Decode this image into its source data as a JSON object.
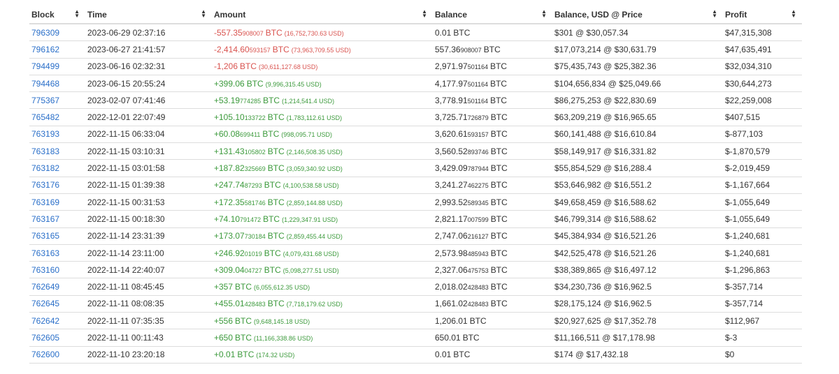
{
  "headers": [
    "Block",
    "Time",
    "Amount",
    "Balance",
    "Balance, USD @ Price",
    "Profit"
  ],
  "rows": [
    {
      "block": "796309",
      "time": "2023-06-29 02:37:16",
      "amt_main": "-557.35",
      "amt_sat": "908007",
      "amt_unit": "BTC",
      "amt_usd": "(16,752,730.63 USD)",
      "amt_sign": "neg",
      "bal_main": "0.01",
      "bal_sat": "",
      "bal_unit": "BTC",
      "usd_price": "$301 @ $30,057.34",
      "profit": "$47,315,308"
    },
    {
      "block": "796162",
      "time": "2023-06-27 21:41:57",
      "amt_main": "-2,414.60",
      "amt_sat": "593157",
      "amt_unit": "BTC",
      "amt_usd": "(73,963,709.55 USD)",
      "amt_sign": "neg",
      "bal_main": "557.36",
      "bal_sat": "908007",
      "bal_unit": "BTC",
      "usd_price": "$17,073,214 @ $30,631.79",
      "profit": "$47,635,491"
    },
    {
      "block": "794499",
      "time": "2023-06-16 02:32:31",
      "amt_main": "-1,206",
      "amt_sat": "",
      "amt_unit": "BTC",
      "amt_usd": "(30,611,127.68 USD)",
      "amt_sign": "neg",
      "bal_main": "2,971.97",
      "bal_sat": "501164",
      "bal_unit": "BTC",
      "usd_price": "$75,435,743 @ $25,382.36",
      "profit": "$32,034,310"
    },
    {
      "block": "794468",
      "time": "2023-06-15 20:55:24",
      "amt_main": "+399.06",
      "amt_sat": "",
      "amt_unit": "BTC",
      "amt_usd": "(9,996,315.45 USD)",
      "amt_sign": "pos",
      "bal_main": "4,177.97",
      "bal_sat": "501164",
      "bal_unit": "BTC",
      "usd_price": "$104,656,834 @ $25,049.66",
      "profit": "$30,644,273"
    },
    {
      "block": "775367",
      "time": "2023-02-07 07:41:46",
      "amt_main": "+53.19",
      "amt_sat": "774285",
      "amt_unit": "BTC",
      "amt_usd": "(1,214,541.4 USD)",
      "amt_sign": "pos",
      "bal_main": "3,778.91",
      "bal_sat": "501164",
      "bal_unit": "BTC",
      "usd_price": "$86,275,253 @ $22,830.69",
      "profit": "$22,259,008"
    },
    {
      "block": "765482",
      "time": "2022-12-01 22:07:49",
      "amt_main": "+105.10",
      "amt_sat": "133722",
      "amt_unit": "BTC",
      "amt_usd": "(1,783,112.61 USD)",
      "amt_sign": "pos",
      "bal_main": "3,725.71",
      "bal_sat": "726879",
      "bal_unit": "BTC",
      "usd_price": "$63,209,219 @ $16,965.65",
      "profit": "$407,515"
    },
    {
      "block": "763193",
      "time": "2022-11-15 06:33:04",
      "amt_main": "+60.08",
      "amt_sat": "699411",
      "amt_unit": "BTC",
      "amt_usd": "(998,095.71 USD)",
      "amt_sign": "pos",
      "bal_main": "3,620.61",
      "bal_sat": "593157",
      "bal_unit": "BTC",
      "usd_price": "$60,141,488 @ $16,610.84",
      "profit": "$-877,103"
    },
    {
      "block": "763183",
      "time": "2022-11-15 03:10:31",
      "amt_main": "+131.43",
      "amt_sat": "105802",
      "amt_unit": "BTC",
      "amt_usd": "(2,146,508.35 USD)",
      "amt_sign": "pos",
      "bal_main": "3,560.52",
      "bal_sat": "893746",
      "bal_unit": "BTC",
      "usd_price": "$58,149,917 @ $16,331.82",
      "profit": "$-1,870,579"
    },
    {
      "block": "763182",
      "time": "2022-11-15 03:01:58",
      "amt_main": "+187.82",
      "amt_sat": "325669",
      "amt_unit": "BTC",
      "amt_usd": "(3,059,340.92 USD)",
      "amt_sign": "pos",
      "bal_main": "3,429.09",
      "bal_sat": "787944",
      "bal_unit": "BTC",
      "usd_price": "$55,854,529 @ $16,288.4",
      "profit": "$-2,019,459"
    },
    {
      "block": "763176",
      "time": "2022-11-15 01:39:38",
      "amt_main": "+247.74",
      "amt_sat": "87293",
      "amt_unit": "BTC",
      "amt_usd": "(4,100,538.58 USD)",
      "amt_sign": "pos",
      "bal_main": "3,241.27",
      "bal_sat": "462275",
      "bal_unit": "BTC",
      "usd_price": "$53,646,982 @ $16,551.2",
      "profit": "$-1,167,664"
    },
    {
      "block": "763169",
      "time": "2022-11-15 00:31:53",
      "amt_main": "+172.35",
      "amt_sat": "581746",
      "amt_unit": "BTC",
      "amt_usd": "(2,859,144.88 USD)",
      "amt_sign": "pos",
      "bal_main": "2,993.52",
      "bal_sat": "589345",
      "bal_unit": "BTC",
      "usd_price": "$49,658,459 @ $16,588.62",
      "profit": "$-1,055,649"
    },
    {
      "block": "763167",
      "time": "2022-11-15 00:18:30",
      "amt_main": "+74.10",
      "amt_sat": "791472",
      "amt_unit": "BTC",
      "amt_usd": "(1,229,347.91 USD)",
      "amt_sign": "pos",
      "bal_main": "2,821.17",
      "bal_sat": "007599",
      "bal_unit": "BTC",
      "usd_price": "$46,799,314 @ $16,588.62",
      "profit": "$-1,055,649"
    },
    {
      "block": "763165",
      "time": "2022-11-14 23:31:39",
      "amt_main": "+173.07",
      "amt_sat": "730184",
      "amt_unit": "BTC",
      "amt_usd": "(2,859,455.44 USD)",
      "amt_sign": "pos",
      "bal_main": "2,747.06",
      "bal_sat": "216127",
      "bal_unit": "BTC",
      "usd_price": "$45,384,934 @ $16,521.26",
      "profit": "$-1,240,681"
    },
    {
      "block": "763163",
      "time": "2022-11-14 23:11:00",
      "amt_main": "+246.92",
      "amt_sat": "01019",
      "amt_unit": "BTC",
      "amt_usd": "(4,079,431.68 USD)",
      "amt_sign": "pos",
      "bal_main": "2,573.98",
      "bal_sat": "485943",
      "bal_unit": "BTC",
      "usd_price": "$42,525,478 @ $16,521.26",
      "profit": "$-1,240,681"
    },
    {
      "block": "763160",
      "time": "2022-11-14 22:40:07",
      "amt_main": "+309.04",
      "amt_sat": "04727",
      "amt_unit": "BTC",
      "amt_usd": "(5,098,277.51 USD)",
      "amt_sign": "pos",
      "bal_main": "2,327.06",
      "bal_sat": "475753",
      "bal_unit": "BTC",
      "usd_price": "$38,389,865 @ $16,497.12",
      "profit": "$-1,296,863"
    },
    {
      "block": "762649",
      "time": "2022-11-11 08:45:45",
      "amt_main": "+357",
      "amt_sat": "",
      "amt_unit": "BTC",
      "amt_usd": "(6,055,612.35 USD)",
      "amt_sign": "pos",
      "bal_main": "2,018.02",
      "bal_sat": "428483",
      "bal_unit": "BTC",
      "usd_price": "$34,230,736 @ $16,962.5",
      "profit": "$-357,714"
    },
    {
      "block": "762645",
      "time": "2022-11-11 08:08:35",
      "amt_main": "+455.01",
      "amt_sat": "428483",
      "amt_unit": "BTC",
      "amt_usd": "(7,718,179.62 USD)",
      "amt_sign": "pos",
      "bal_main": "1,661.02",
      "bal_sat": "428483",
      "bal_unit": "BTC",
      "usd_price": "$28,175,124 @ $16,962.5",
      "profit": "$-357,714"
    },
    {
      "block": "762642",
      "time": "2022-11-11 07:35:35",
      "amt_main": "+556",
      "amt_sat": "",
      "amt_unit": "BTC",
      "amt_usd": "(9,648,145.18 USD)",
      "amt_sign": "pos",
      "bal_main": "1,206.01",
      "bal_sat": "",
      "bal_unit": "BTC",
      "usd_price": "$20,927,625 @ $17,352.78",
      "profit": "$112,967"
    },
    {
      "block": "762605",
      "time": "2022-11-11 00:11:43",
      "amt_main": "+650",
      "amt_sat": "",
      "amt_unit": "BTC",
      "amt_usd": "(11,166,338.86 USD)",
      "amt_sign": "pos",
      "bal_main": "650.01",
      "bal_sat": "",
      "bal_unit": "BTC",
      "usd_price": "$11,166,511 @ $17,178.98",
      "profit": "$-3"
    },
    {
      "block": "762600",
      "time": "2022-11-10 23:20:18",
      "amt_main": "+0.01",
      "amt_sat": "",
      "amt_unit": "BTC",
      "amt_usd": "(174.32 USD)",
      "amt_sign": "pos",
      "bal_main": "0.01",
      "bal_sat": "",
      "bal_unit": "BTC",
      "usd_price": "$174 @ $17,432.18",
      "profit": "$0"
    }
  ],
  "colors": {
    "link": "#2a6fc9",
    "negative": "#d9534f",
    "positive": "#3c9a3c",
    "border": "#dddddd"
  },
  "icons": {
    "sort": "sort-arrows-icon"
  }
}
